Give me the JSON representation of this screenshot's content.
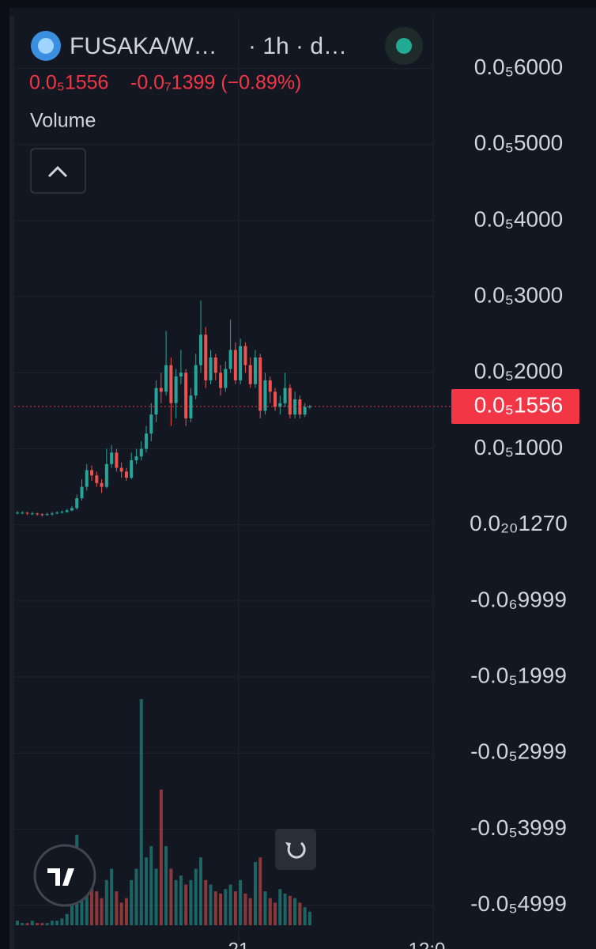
{
  "header": {
    "title": "FUSAKA/W…",
    "interval": "· 1h · d…",
    "price": "0.0₅1556",
    "change": "-0.0₇1399 (−0.89%)",
    "indicator": "Volume"
  },
  "chart_data": {
    "type": "candlestick",
    "open": [
      1.6e-07,
      1.6e-07,
      1.6e-07,
      1.5e-07,
      1.5e-07,
      1.4e-07,
      1.3e-07,
      1.4e-07,
      1.5e-07,
      1.6e-07,
      1.7e-07,
      1.9e-07,
      2.2e-07,
      3.5e-07,
      5e-07,
      7.2e-07,
      6.5e-07,
      5.5e-07,
      5e-07,
      8e-07,
      9.5e-07,
      7.5e-07,
      7e-07,
      6.2e-07,
      8.5e-07,
      9e-07,
      1e-06,
      1.2e-06,
      1.45e-06,
      1.8e-06,
      1.75e-06,
      2.1e-06,
      1.6e-06,
      1.95e-06,
      2e-06,
      1.4e-06,
      1.7e-06,
      2.1e-06,
      2.5e-06,
      1.9e-06,
      2.2e-06,
      2e-06,
      1.8e-06,
      2.05e-06,
      2.3e-06,
      1.9e-06,
      2.35e-06,
      2.1e-06,
      1.85e-06,
      2.2e-06,
      1.5e-06,
      1.9e-06,
      1.75e-06,
      1.55e-06,
      1.6e-06,
      1.8e-06,
      1.45e-06,
      1.65e-06,
      1.45e-06,
      1.55e-06
    ],
    "high": [
      1.8e-07,
      1.8e-07,
      1.7e-07,
      1.7e-07,
      1.6e-07,
      1.5e-07,
      1.6e-07,
      1.7e-07,
      1.8e-07,
      1.9e-07,
      2.1e-07,
      2.5e-07,
      4e-07,
      6e-07,
      8e-07,
      7.8e-07,
      7e-07,
      6e-07,
      1e-06,
      1.05e-06,
      1e-06,
      8.2e-07,
      7.5e-07,
      9.5e-07,
      1e-06,
      1.1e-06,
      1.3e-06,
      1.6e-06,
      1.9e-06,
      2e-06,
      2.55e-06,
      2.2e-06,
      2.05e-06,
      2.3e-06,
      2.05e-06,
      1.8e-06,
      2.25e-06,
      2.95e-06,
      2.6e-06,
      2.3e-06,
      2.25e-06,
      2.1e-06,
      2.15e-06,
      2.7e-06,
      2.4e-06,
      2.45e-06,
      2.4e-06,
      2.2e-06,
      2.3e-06,
      2.25e-06,
      2e-06,
      1.95e-06,
      1.8e-06,
      1.7e-06,
      2e-06,
      1.85e-06,
      1.75e-06,
      1.7e-06,
      1.6e-06,
      1.58e-06
    ],
    "low": [
      1.4e-07,
      1.4e-07,
      1.3e-07,
      1.3e-07,
      1.2e-07,
      1.1e-07,
      1.2e-07,
      1.2e-07,
      1.4e-07,
      1.5e-07,
      1.6e-07,
      1.8e-07,
      2e-07,
      3.2e-07,
      4.5e-07,
      5.8e-07,
      5e-07,
      4.2e-07,
      4.8e-07,
      7.5e-07,
      7e-07,
      6.2e-07,
      5.8e-07,
      6e-07,
      8e-07,
      8.5e-07,
      9.5e-07,
      1.1e-06,
      1.35e-06,
      1.6e-06,
      1.7e-06,
      1.3e-06,
      1.4e-06,
      1.85e-06,
      1.3e-06,
      1.35e-06,
      1.65e-06,
      2e-06,
      1.8e-06,
      1.85e-06,
      1.9e-06,
      1.7e-06,
      1.75e-06,
      2e-06,
      1.85e-06,
      1.85e-06,
      2e-06,
      1.8e-06,
      1.8e-06,
      1.4e-06,
      1.45e-06,
      1.6e-06,
      1.5e-06,
      1.45e-06,
      1.55e-06,
      1.4e-06,
      1.4e-06,
      1.4e-06,
      1.42e-06,
      1.52e-06
    ],
    "close": [
      1.6e-07,
      1.6e-07,
      1.5e-07,
      1.5e-07,
      1.4e-07,
      1.3e-07,
      1.4e-07,
      1.5e-07,
      1.6e-07,
      1.7e-07,
      1.9e-07,
      2.2e-07,
      3.5e-07,
      5e-07,
      7.2e-07,
      6.5e-07,
      5.5e-07,
      5e-07,
      8e-07,
      9.5e-07,
      7.5e-07,
      7e-07,
      6.2e-07,
      8.5e-07,
      9e-07,
      1e-06,
      1.2e-06,
      1.45e-06,
      1.8e-06,
      1.75e-06,
      2.1e-06,
      1.6e-06,
      1.95e-06,
      2e-06,
      1.4e-06,
      1.7e-06,
      2.1e-06,
      2.5e-06,
      1.9e-06,
      2.2e-06,
      2e-06,
      1.8e-06,
      2.05e-06,
      2.3e-06,
      1.9e-06,
      2.35e-06,
      2.1e-06,
      1.85e-06,
      2.2e-06,
      1.5e-06,
      1.9e-06,
      1.75e-06,
      1.55e-06,
      1.6e-06,
      1.8e-06,
      1.45e-06,
      1.65e-06,
      1.45e-06,
      1.55e-06,
      1.556e-06
    ],
    "volume": [
      2,
      1,
      1,
      2,
      1,
      1,
      1,
      2,
      2,
      3,
      5,
      20,
      40,
      25,
      30,
      18,
      15,
      12,
      20,
      25,
      15,
      10,
      12,
      20,
      25,
      100,
      30,
      35,
      25,
      60,
      35,
      25,
      20,
      22,
      18,
      20,
      25,
      30,
      20,
      18,
      15,
      14,
      16,
      18,
      15,
      20,
      14,
      12,
      28,
      30,
      15,
      12,
      10,
      16,
      14,
      13,
      12,
      10,
      8,
      6
    ],
    "up_color": "#26a69a",
    "down_color": "#ef5350",
    "ylim": [
      -5.7e-06,
      6.9e-06
    ],
    "yticks": [
      {
        "value": 6e-06,
        "label": "0.0₅6000"
      },
      {
        "value": 5e-06,
        "label": "0.0₅5000"
      },
      {
        "value": 4e-06,
        "label": "0.0₅4000"
      },
      {
        "value": 3e-06,
        "label": "0.0₅3000"
      },
      {
        "value": 2e-06,
        "label": "0.0₅2000"
      },
      {
        "value": 1e-06,
        "label": "0.0₅1000"
      },
      {
        "value": 1.27e-21,
        "label": "0.0₂₀1270"
      },
      {
        "value": -9.999e-07,
        "label": "-0.0₆9999"
      },
      {
        "value": -1.999e-06,
        "label": "-0.0₅1999"
      },
      {
        "value": -2.999e-06,
        "label": "-0.0₅2999"
      },
      {
        "value": -3.999e-06,
        "label": "-0.0₅3999"
      },
      {
        "value": -4.999e-06,
        "label": "-0.0₅4999"
      }
    ],
    "last_price": {
      "value": 1.556e-06,
      "label": "0.0₅1556"
    },
    "xticks": [
      "21",
      "12:0"
    ],
    "grid": true
  }
}
